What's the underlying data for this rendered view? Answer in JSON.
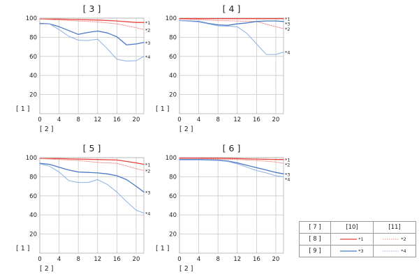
{
  "colors": {
    "red_solid": "#e8433a",
    "red_dotted": "#ef8d88",
    "blue_solid": "#4a78c6",
    "blue_dotted": "#8db0e2"
  },
  "chart_data": [
    {
      "type": "line",
      "title": "[ 3 ]",
      "ylabel": "[ 1 ]",
      "xlabel": "[ 2 ]",
      "xlim": [
        0,
        21.6
      ],
      "ylim": [
        0,
        100
      ],
      "xticks": [
        "0",
        "4",
        "8",
        "12",
        "16",
        "20"
      ],
      "yticks": [
        "20",
        "40",
        "60",
        "80",
        "100"
      ],
      "grid": true,
      "series": [
        {
          "name": "*1",
          "style": "red_solid",
          "x": [
            0,
            4,
            8,
            12,
            16,
            20,
            21.6
          ],
          "y": [
            99,
            99,
            98.5,
            98,
            97,
            95.5,
            95.5
          ]
        },
        {
          "name": "*2",
          "style": "red_dotted",
          "x": [
            0,
            4,
            8,
            12,
            16,
            20,
            21.6
          ],
          "y": [
            99,
            98,
            97,
            96,
            94,
            90,
            88
          ]
        },
        {
          "name": "*3",
          "style": "blue_solid",
          "x": [
            0,
            2,
            4,
            6,
            8,
            10,
            12,
            14,
            16,
            18,
            20,
            21.6
          ],
          "y": [
            94.5,
            94,
            91,
            87,
            83,
            85,
            86.5,
            84.5,
            80.5,
            72,
            73,
            74.5
          ]
        },
        {
          "name": "*4",
          "style": "blue_dotted",
          "x": [
            0,
            2,
            4,
            6,
            8,
            10,
            12,
            14,
            16,
            18,
            20,
            21.6
          ],
          "y": [
            94,
            94,
            88,
            81,
            77,
            76.5,
            78,
            68,
            57,
            55,
            55.5,
            60
          ]
        }
      ]
    },
    {
      "type": "line",
      "title": "[ 4 ]",
      "ylabel": "[ 1 ]",
      "xlabel": "[ 2 ]",
      "xlim": [
        0,
        21.6
      ],
      "ylim": [
        0,
        100
      ],
      "xticks": [
        "0",
        "4",
        "8",
        "12",
        "16",
        "20"
      ],
      "yticks": [
        "20",
        "40",
        "60",
        "80",
        "100"
      ],
      "grid": true,
      "series": [
        {
          "name": "*1",
          "style": "red_solid",
          "x": [
            0,
            4,
            8,
            12,
            16,
            20,
            21.6
          ],
          "y": [
            99.5,
            99.5,
            99.5,
            99.5,
            99.5,
            99.5,
            99.5
          ]
        },
        {
          "name": "*2",
          "style": "red_dotted",
          "x": [
            0,
            4,
            8,
            12,
            16,
            20,
            21.6
          ],
          "y": [
            99,
            98.5,
            97.5,
            97,
            96.5,
            91,
            89
          ]
        },
        {
          "name": "*3",
          "style": "blue_solid",
          "x": [
            0,
            4,
            6,
            8,
            10,
            12,
            14,
            16,
            18,
            20,
            21.6
          ],
          "y": [
            97.5,
            96.5,
            94.5,
            93,
            92.5,
            94,
            95,
            96.5,
            97,
            97,
            96.5
          ]
        },
        {
          "name": "*4",
          "style": "blue_dotted",
          "x": [
            0,
            4,
            8,
            12,
            14,
            16,
            18,
            20,
            21.6
          ],
          "y": [
            97.5,
            96,
            92,
            91,
            84,
            73,
            62,
            62,
            64.5
          ]
        }
      ]
    },
    {
      "type": "line",
      "title": "[ 5 ]",
      "ylabel": "[ 1 ]",
      "xlabel": "[ 2 ]",
      "xlim": [
        0,
        21.6
      ],
      "ylim": [
        0,
        100
      ],
      "xticks": [
        "0",
        "4",
        "8",
        "12",
        "16",
        "20"
      ],
      "yticks": [
        "20",
        "40",
        "60",
        "80",
        "100"
      ],
      "grid": true,
      "series": [
        {
          "name": "*1",
          "style": "red_solid",
          "x": [
            0,
            4,
            8,
            12,
            16,
            20,
            21.6
          ],
          "y": [
            99,
            99,
            98.5,
            98,
            97.5,
            94.5,
            93
          ]
        },
        {
          "name": "*2",
          "style": "red_dotted",
          "x": [
            0,
            4,
            8,
            12,
            16,
            20,
            21.6
          ],
          "y": [
            99,
            98,
            97,
            95,
            94,
            88.5,
            86.5
          ]
        },
        {
          "name": "*3",
          "style": "blue_solid",
          "x": [
            0,
            2,
            4,
            6,
            8,
            10,
            12,
            14,
            16,
            18,
            20,
            21.6
          ],
          "y": [
            94,
            93,
            90,
            87,
            85,
            84.5,
            84,
            83,
            81,
            77,
            70,
            64
          ]
        },
        {
          "name": "*4",
          "style": "blue_dotted",
          "x": [
            0,
            2,
            4,
            6,
            8,
            10,
            12,
            14,
            16,
            18,
            20,
            21.6
          ],
          "y": [
            93.5,
            91,
            85,
            76,
            74,
            74,
            77,
            72,
            64,
            54,
            45,
            42
          ]
        }
      ]
    },
    {
      "type": "line",
      "title": "[ 6 ]",
      "ylabel": "[ 1 ]",
      "xlabel": "[ 2 ]",
      "xlim": [
        0,
        21.6
      ],
      "ylim": [
        0,
        100
      ],
      "xticks": [
        "0",
        "4",
        "8",
        "12",
        "16",
        "20"
      ],
      "yticks": [
        "20",
        "40",
        "60",
        "80",
        "100"
      ],
      "grid": true,
      "series": [
        {
          "name": "*1",
          "style": "red_solid",
          "x": [
            0,
            4,
            8,
            12,
            16,
            20,
            21.6
          ],
          "y": [
            99.5,
            99.5,
            99.5,
            99,
            98.5,
            98,
            98
          ]
        },
        {
          "name": "*2",
          "style": "red_dotted",
          "x": [
            0,
            4,
            8,
            12,
            16,
            20,
            21.6
          ],
          "y": [
            99,
            99,
            98.5,
            98,
            97,
            95.5,
            94
          ]
        },
        {
          "name": "*3",
          "style": "blue_solid",
          "x": [
            0,
            4,
            8,
            10,
            12,
            14,
            16,
            18,
            20,
            21.6
          ],
          "y": [
            98,
            98,
            97.5,
            96.5,
            94.5,
            92,
            89.5,
            87,
            84.5,
            83
          ]
        },
        {
          "name": "*4",
          "style": "blue_dotted",
          "x": [
            0,
            4,
            8,
            10,
            12,
            14,
            16,
            18,
            20,
            21.6
          ],
          "y": [
            97.5,
            97.5,
            97,
            96,
            93.5,
            90,
            86.5,
            84,
            81,
            80
          ]
        }
      ]
    }
  ],
  "legend": {
    "header": [
      "[ 7 ]",
      "[10]",
      "[11]"
    ],
    "rows": [
      {
        "label": "[ 8 ]",
        "solid": "*1",
        "dotted": "*2",
        "color": "red"
      },
      {
        "label": "[ 9 ]",
        "solid": "*3",
        "dotted": "*4",
        "color": "blue"
      }
    ]
  }
}
